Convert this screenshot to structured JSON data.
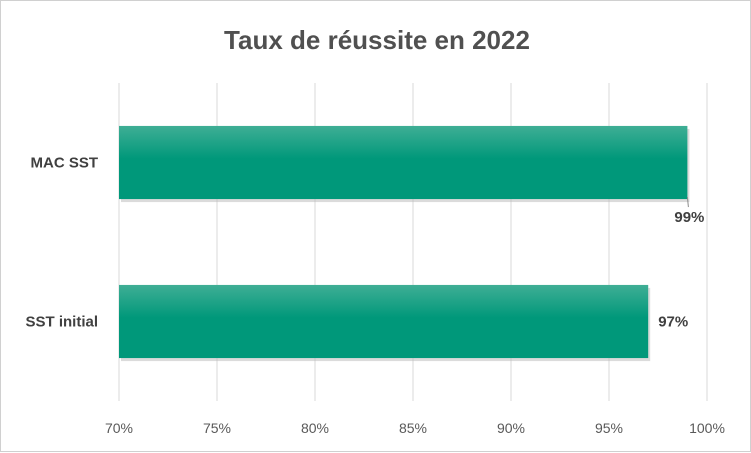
{
  "chart_data": {
    "type": "bar",
    "orientation": "horizontal",
    "title": "Taux de réussite en 2022",
    "categories": [
      "MAC SST",
      "SST initial"
    ],
    "values": [
      0.99,
      0.97
    ],
    "data_labels": [
      "99%",
      "97%"
    ],
    "xlim": [
      0.7,
      1.0
    ],
    "x_ticks": [
      0.7,
      0.75,
      0.8,
      0.85,
      0.9,
      0.95,
      1.0
    ],
    "x_tick_labels": [
      "70%",
      "75%",
      "80%",
      "85%",
      "90%",
      "95%",
      "100%"
    ],
    "grid": "vertical",
    "legend": "none",
    "bar_color": "#00987a",
    "bar_highlight_color": "#3fae95"
  }
}
